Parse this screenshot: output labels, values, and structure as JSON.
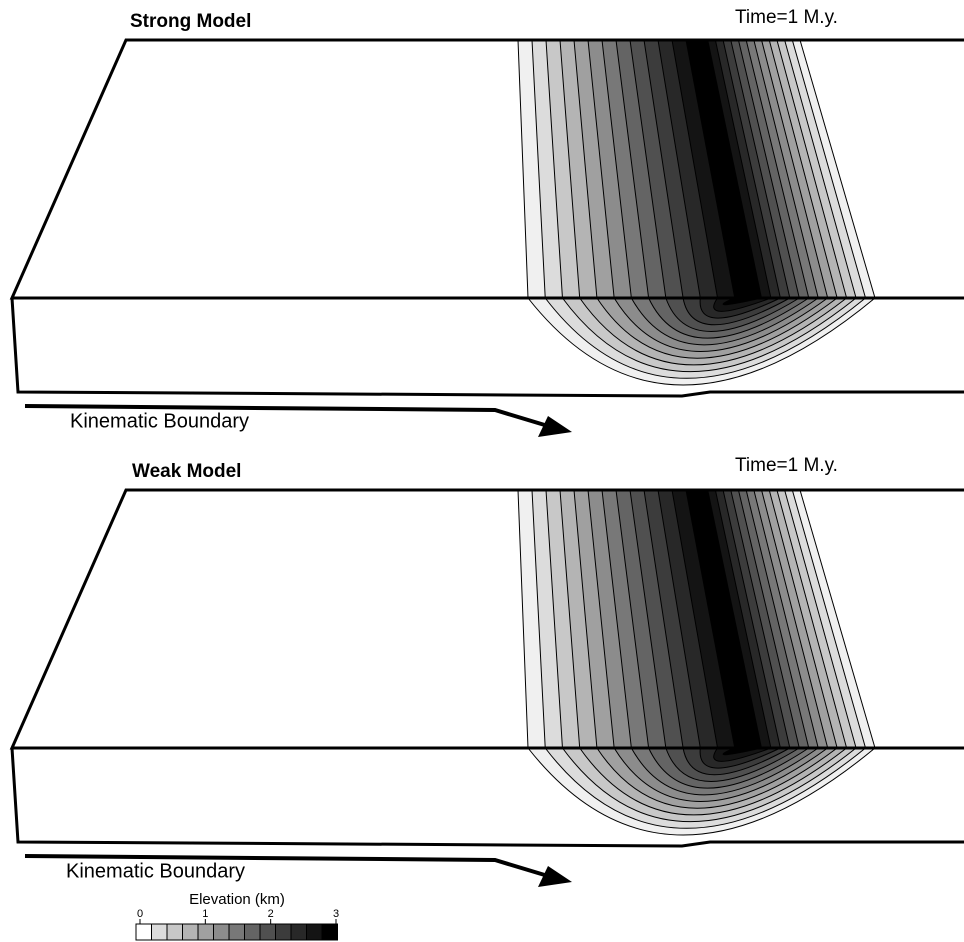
{
  "panels": [
    {
      "title": "Strong Model",
      "time": "Time=1 M.y.",
      "boundary_label": "Kinematic Boundary"
    },
    {
      "title": "Weak Model",
      "time": "Time=1 M.y.",
      "boundary_label": "Kinematic Boundary"
    }
  ],
  "legend": {
    "title": "Elevation (km)",
    "ticks": [
      0,
      1,
      2,
      3
    ]
  }
}
